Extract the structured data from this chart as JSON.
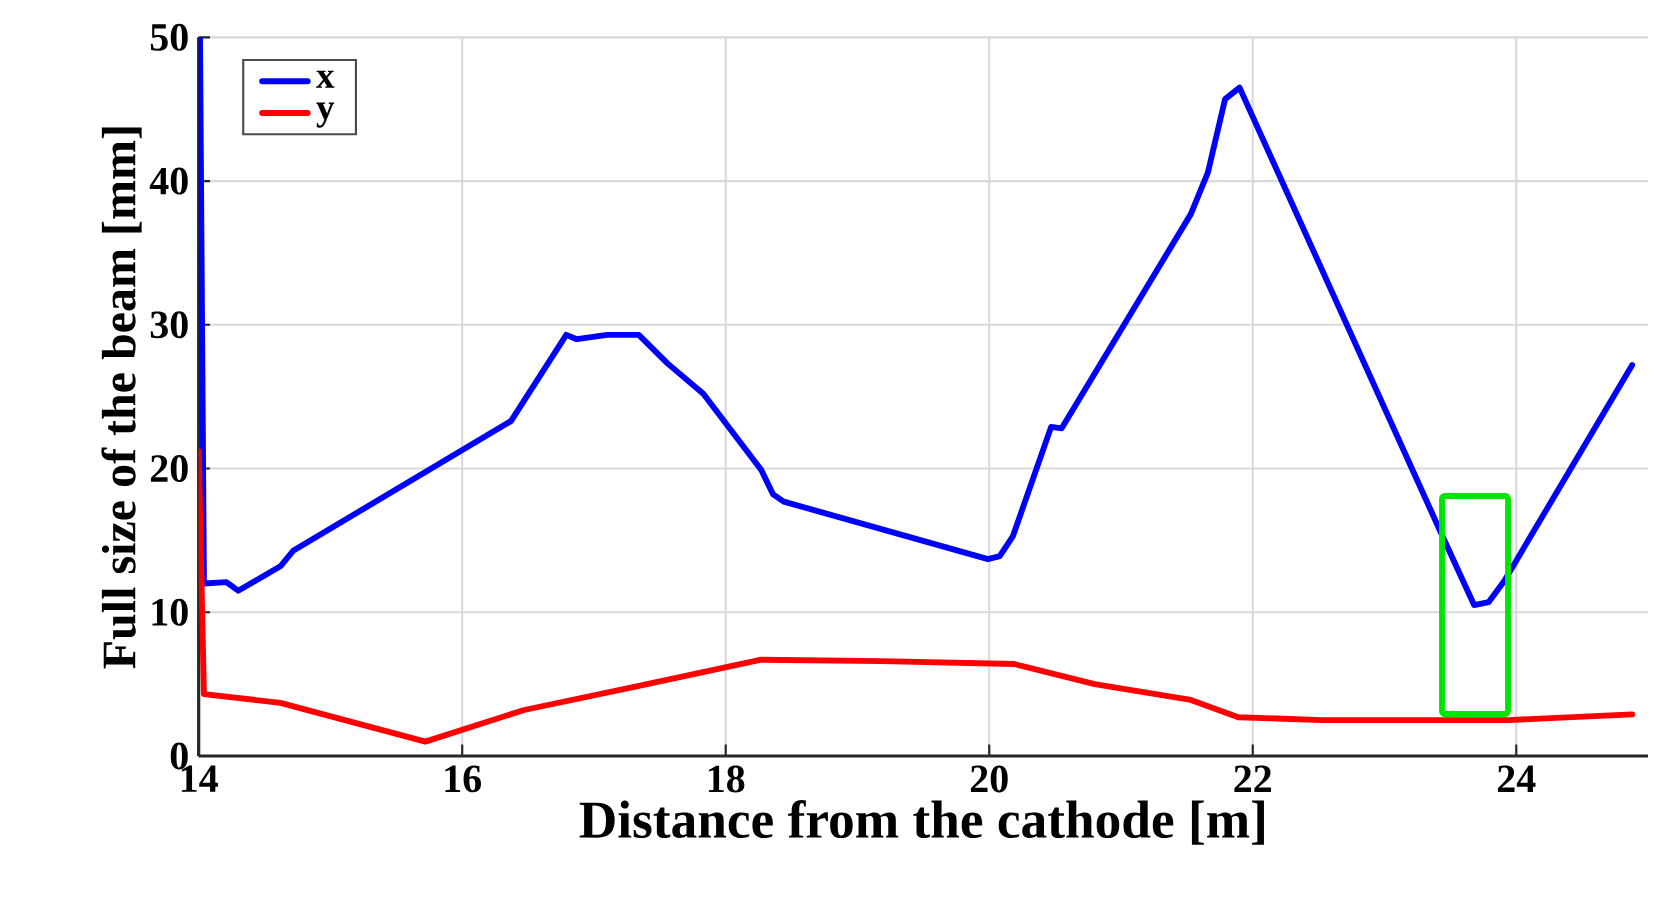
{
  "chart_data": {
    "type": "line",
    "xlabel": "Distance from the cathode [m]",
    "ylabel": "Full size of the beam [mm]",
    "xlim": [
      14,
      25
    ],
    "ylim": [
      0,
      50
    ],
    "xticks": [
      14,
      16,
      18,
      20,
      22,
      24
    ],
    "yticks": [
      0,
      10,
      20,
      30,
      40,
      50
    ],
    "grid": true,
    "legend": "top left",
    "marker": "none",
    "line_style": "solid",
    "series": [
      {
        "name": "x",
        "color": "#0000ff",
        "x": [
          14.01,
          14.04,
          14.21,
          14.3,
          14.62,
          14.72,
          16.37,
          16.79,
          16.87,
          17.1,
          17.34,
          17.56,
          17.83,
          18.27,
          18.36,
          18.44,
          19.99,
          20.08,
          20.18,
          20.47,
          20.55,
          21.53,
          21.66,
          21.79,
          21.9,
          23.43,
          23.68,
          23.79,
          23.91,
          24.88
        ],
        "values": [
          50,
          12.0,
          12.1,
          11.5,
          13.2,
          14.3,
          23.3,
          29.3,
          29.0,
          29.3,
          29.3,
          27.3,
          25.2,
          19.9,
          18.2,
          17.7,
          13.7,
          13.9,
          15.3,
          22.9,
          22.8,
          37.7,
          40.6,
          45.7,
          46.5,
          15.5,
          10.5,
          10.7,
          12.2,
          27.2
        ]
      },
      {
        "name": "y",
        "color": "#ff0000",
        "x": [
          14.0,
          14.04,
          14.62,
          15.72,
          16.47,
          17.35,
          18.27,
          19.18,
          20.19,
          20.8,
          21.53,
          21.89,
          22.52,
          23.94,
          24.88
        ],
        "values": [
          21.2,
          4.3,
          3.7,
          1.0,
          3.2,
          4.9,
          6.7,
          6.6,
          6.4,
          5.0,
          3.9,
          2.7,
          2.5,
          2.5,
          2.9
        ]
      }
    ]
  }
}
